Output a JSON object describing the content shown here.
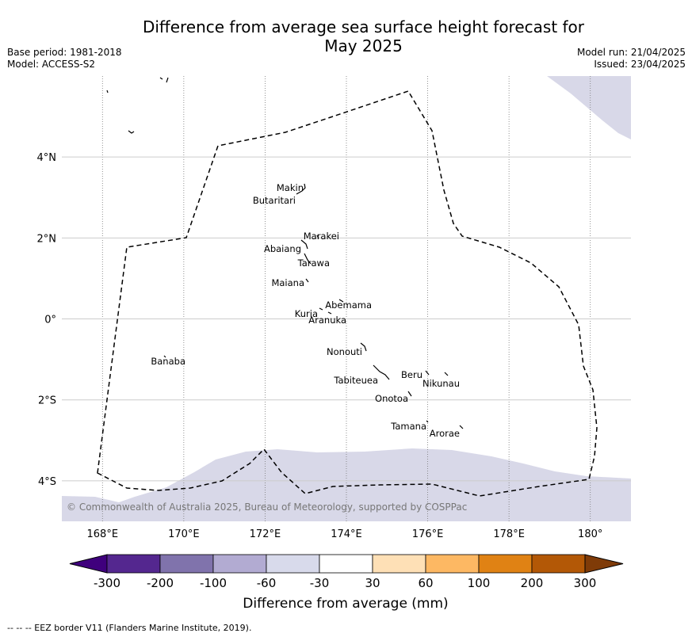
{
  "title_line1": "Difference from average sea surface height forecast for",
  "title_line2": "May 2025",
  "meta_left": {
    "base_period": "Base period: 1981-2018",
    "model": "Model: ACCESS-S2"
  },
  "meta_right": {
    "model_run": "Model run: 21/04/2025",
    "issued": "Issued: 23/04/2025"
  },
  "map": {
    "lon_range": [
      167,
      181
    ],
    "lat_range": [
      -5,
      6
    ],
    "lon_ticks": [
      {
        "lon": 168,
        "label": "168°E"
      },
      {
        "lon": 170,
        "label": "170°E"
      },
      {
        "lon": 172,
        "label": "172°E"
      },
      {
        "lon": 174,
        "label": "174°E"
      },
      {
        "lon": 176,
        "label": "176°E"
      },
      {
        "lon": 178,
        "label": "178°E"
      },
      {
        "lon": 180,
        "label": "180°"
      }
    ],
    "lat_ticks": [
      {
        "lat": 4,
        "label": "4°N"
      },
      {
        "lat": 2,
        "label": "2°N"
      },
      {
        "lat": 0,
        "label": "0°"
      },
      {
        "lat": -2,
        "label": "2°S"
      },
      {
        "lat": -4,
        "label": "4°S"
      }
    ],
    "islands": [
      {
        "name": "Makin",
        "lon": 172.95,
        "lat": 3.15
      },
      {
        "name": "Butaritari",
        "lon": 172.75,
        "lat": 3.05
      },
      {
        "name": "Marakei",
        "lon": 173.3,
        "lat": 2.0
      },
      {
        "name": "Abaiang",
        "lon": 172.9,
        "lat": 1.8
      },
      {
        "name": "Tarawa",
        "lon": 173.0,
        "lat": 1.4
      },
      {
        "name": "Maiana",
        "lon": 173.0,
        "lat": 1.0
      },
      {
        "name": "Abemama",
        "lon": 173.85,
        "lat": 0.45
      },
      {
        "name": "Kuria",
        "lon": 173.35,
        "lat": 0.2
      },
      {
        "name": "Aranuka",
        "lon": 173.6,
        "lat": 0.2
      },
      {
        "name": "Nonouti",
        "lon": 174.4,
        "lat": -0.65
      },
      {
        "name": "Banaba",
        "lon": 169.5,
        "lat": -0.9
      },
      {
        "name": "Tabiteuea",
        "lon": 174.9,
        "lat": -1.35
      },
      {
        "name": "Beru",
        "lon": 175.98,
        "lat": -1.35
      },
      {
        "name": "Nikunau",
        "lon": 176.45,
        "lat": -1.35
      },
      {
        "name": "Onotoa",
        "lon": 175.55,
        "lat": -1.82
      },
      {
        "name": "Tamana",
        "lon": 175.98,
        "lat": -2.5
      },
      {
        "name": "Arorae",
        "lon": 176.82,
        "lat": -2.65
      }
    ],
    "anomaly_fill_color": "#d8d8e8",
    "eez_color": "#000000"
  },
  "copyright": "© Commonwealth of Australia 2025, Bureau of Meteorology, supported by COSPPac",
  "colorbar": {
    "title": "Difference from average (mm)",
    "labels": [
      "-300",
      "-200",
      "-100",
      "-60",
      "-30",
      "30",
      "60",
      "100",
      "200",
      "300"
    ],
    "colors": [
      "#3f007d",
      "#54278f",
      "#8073ac",
      "#b2abd2",
      "#d8daeb",
      "#ffffff",
      "#fee0b6",
      "#fdb863",
      "#e08214",
      "#b35806",
      "#7f3b08"
    ]
  },
  "footer": "--  --  -- EEZ border V11 (Flanders Marine Institute, 2019)."
}
